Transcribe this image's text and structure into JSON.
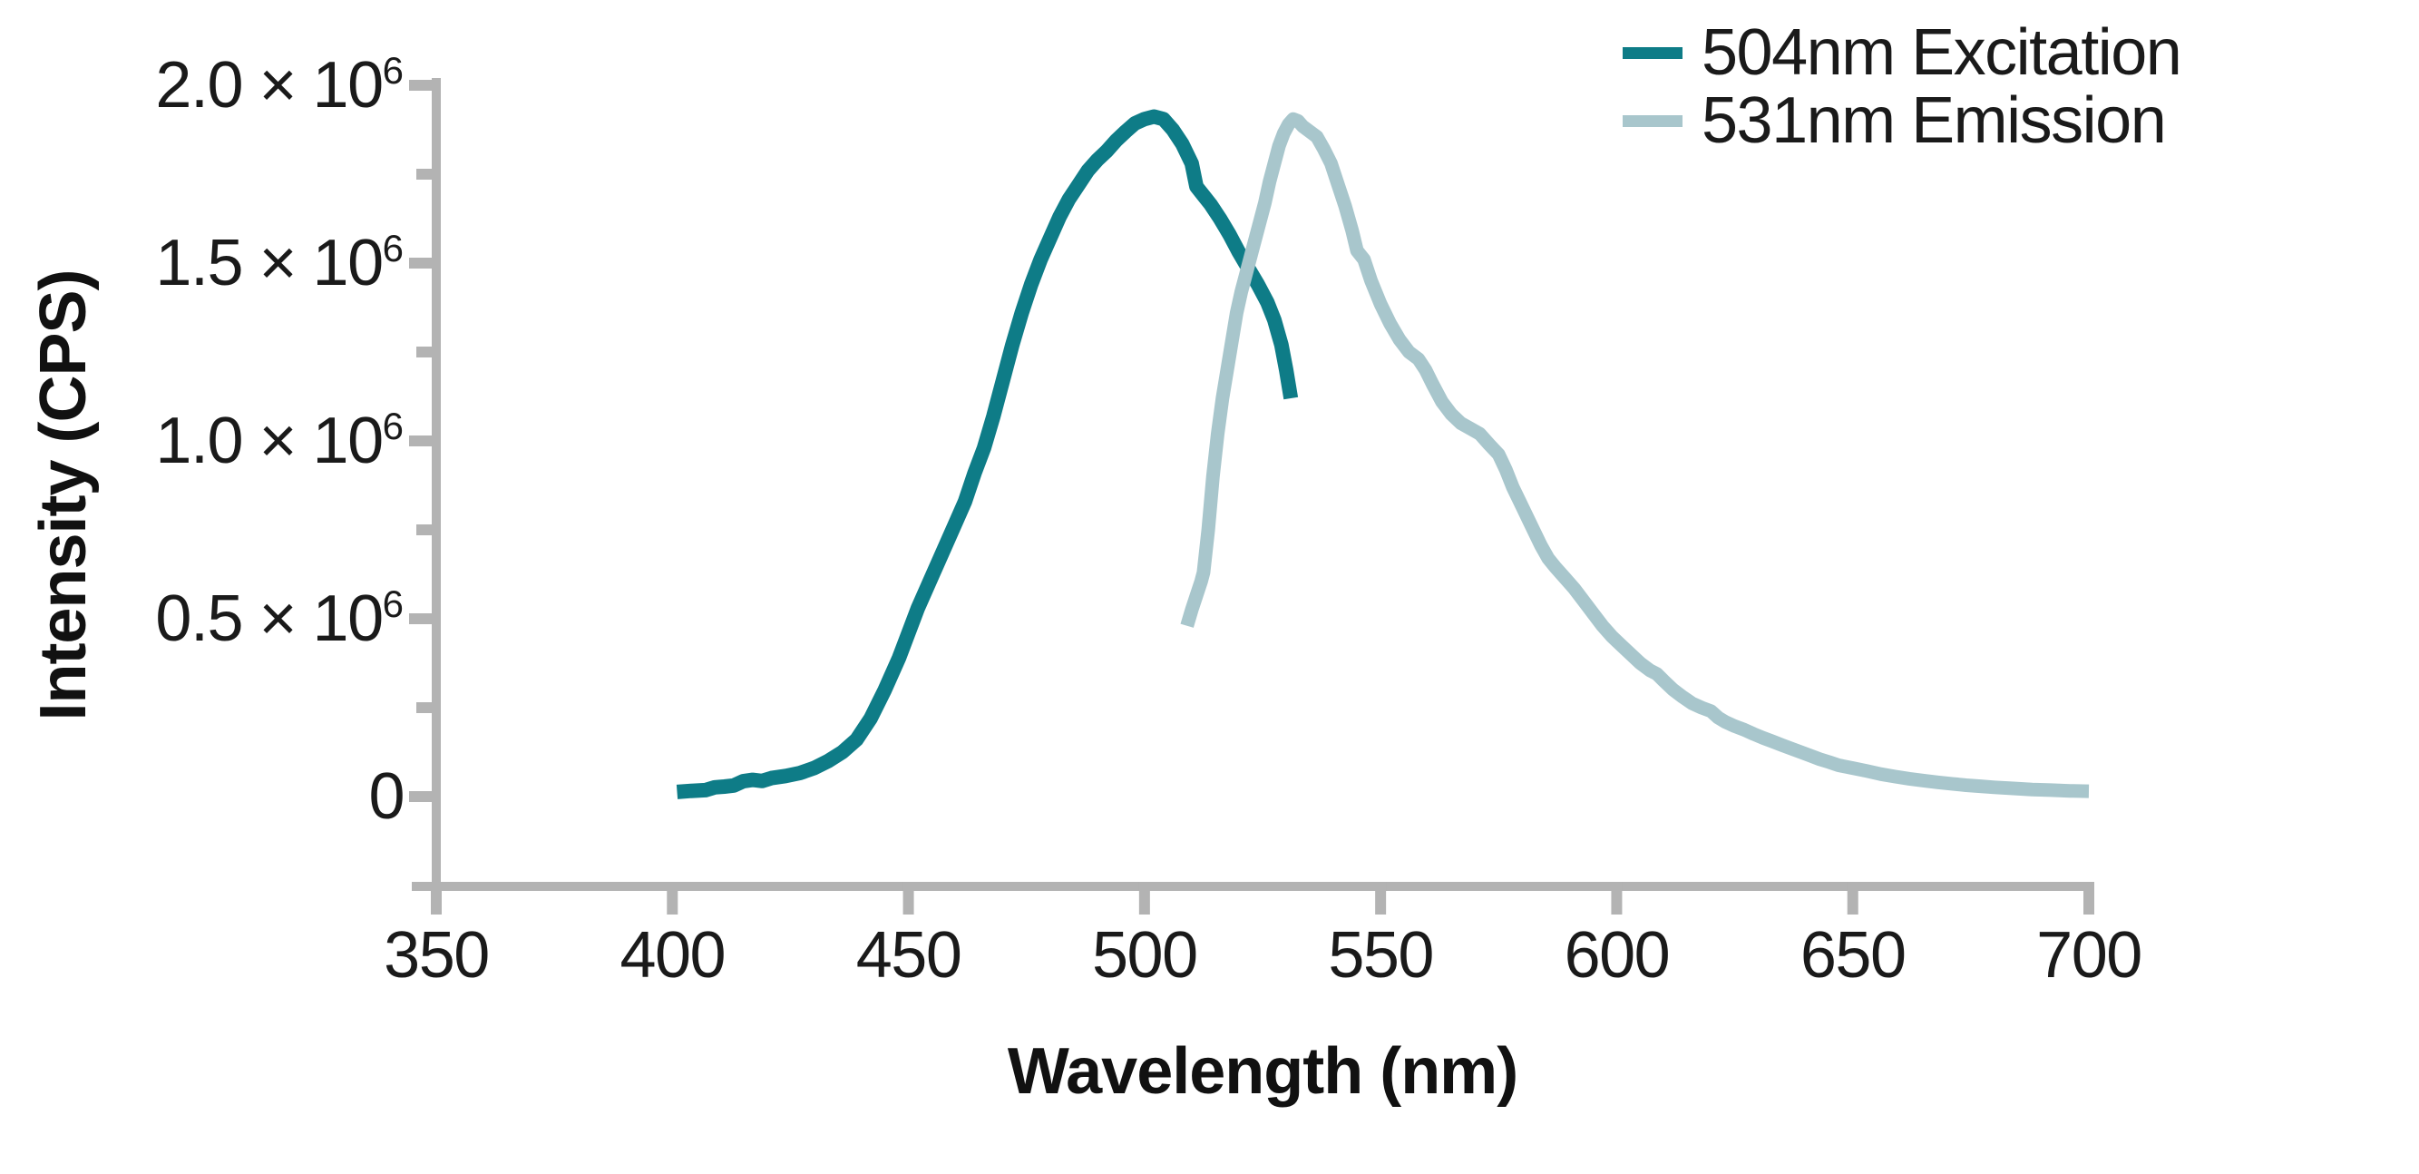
{
  "chart_data": {
    "type": "line",
    "title": "",
    "xlabel": "Wavelength (nm)",
    "ylabel": "Intensity (CPS)",
    "xlim": [
      350,
      700
    ],
    "ylim_cps": [
      0,
      2000000
    ],
    "y_unit_note": "intensity values below are in millions of CPS (×10⁶)",
    "grid": false,
    "legend_position": "top-right",
    "axis_color": "#b3b3b3",
    "text_color": "#1a1a1a",
    "x_ticks": [
      {
        "label": "350",
        "value": 350
      },
      {
        "label": "400",
        "value": 400
      },
      {
        "label": "450",
        "value": 450
      },
      {
        "label": "500",
        "value": 500
      },
      {
        "label": "550",
        "value": 550
      },
      {
        "label": "600",
        "value": 600
      },
      {
        "label": "650",
        "value": 650
      },
      {
        "label": "700",
        "value": 700
      }
    ],
    "y_ticks": [
      {
        "main": "2.0 × 10",
        "sup": "6",
        "value": 2.0
      },
      {
        "main": "1.5 × 10",
        "sup": "6",
        "value": 1.5
      },
      {
        "main": "1.0 × 10",
        "sup": "6",
        "value": 1.0
      },
      {
        "main": "0.5 × 10",
        "sup": "6",
        "value": 0.5
      },
      {
        "main": "0",
        "sup": "",
        "value": 0
      }
    ],
    "y_minor_ticks": [
      1.75,
      1.25,
      0.75,
      0.25
    ],
    "series": [
      {
        "name": "504nm Excitation",
        "color": "#0e7c87",
        "peak_nm": 504,
        "peak_intensity_e6": 1.91,
        "points": [
          [
            401,
            0.013
          ],
          [
            404,
            0.016
          ],
          [
            407,
            0.018
          ],
          [
            409,
            0.026
          ],
          [
            411,
            0.028
          ],
          [
            413,
            0.031
          ],
          [
            415,
            0.043
          ],
          [
            417,
            0.047
          ],
          [
            419,
            0.044
          ],
          [
            421,
            0.052
          ],
          [
            424,
            0.058
          ],
          [
            427,
            0.066
          ],
          [
            430,
            0.08
          ],
          [
            433,
            0.1
          ],
          [
            436,
            0.125
          ],
          [
            439,
            0.16
          ],
          [
            442,
            0.22
          ],
          [
            445,
            0.3
          ],
          [
            448,
            0.39
          ],
          [
            450,
            0.46
          ],
          [
            452,
            0.53
          ],
          [
            454,
            0.59
          ],
          [
            456,
            0.65
          ],
          [
            458,
            0.71
          ],
          [
            460,
            0.77
          ],
          [
            462,
            0.83
          ],
          [
            464,
            0.91
          ],
          [
            466,
            0.98
          ],
          [
            468,
            1.07
          ],
          [
            470,
            1.17
          ],
          [
            472,
            1.27
          ],
          [
            474,
            1.36
          ],
          [
            476,
            1.44
          ],
          [
            478,
            1.51
          ],
          [
            480,
            1.57
          ],
          [
            482,
            1.63
          ],
          [
            484,
            1.68
          ],
          [
            486,
            1.72
          ],
          [
            488,
            1.76
          ],
          [
            490,
            1.79
          ],
          [
            492,
            1.815
          ],
          [
            494,
            1.845
          ],
          [
            496,
            1.87
          ],
          [
            498,
            1.893
          ],
          [
            500,
            1.905
          ],
          [
            502,
            1.912
          ],
          [
            504,
            1.905
          ],
          [
            506,
            1.875
          ],
          [
            508,
            1.835
          ],
          [
            510,
            1.78
          ],
          [
            511,
            1.715
          ],
          [
            512.5,
            1.69
          ],
          [
            514,
            1.665
          ],
          [
            516,
            1.625
          ],
          [
            518,
            1.58
          ],
          [
            520,
            1.53
          ],
          [
            522,
            1.485
          ],
          [
            524,
            1.44
          ],
          [
            526,
            1.39
          ],
          [
            527.5,
            1.34
          ],
          [
            529,
            1.27
          ],
          [
            530,
            1.2
          ],
          [
            531,
            1.12
          ]
        ]
      },
      {
        "name": "531nm Emission",
        "color": "#a8c6cc",
        "peak_nm": 531,
        "peak_intensity_e6": 1.9,
        "points": [
          [
            509,
            0.48
          ],
          [
            510,
            0.525
          ],
          [
            511,
            0.565
          ],
          [
            512,
            0.605
          ],
          [
            512.5,
            0.63
          ],
          [
            513.5,
            0.75
          ],
          [
            514.5,
            0.9
          ],
          [
            515.5,
            1.02
          ],
          [
            516.5,
            1.12
          ],
          [
            517.5,
            1.2
          ],
          [
            518.5,
            1.28
          ],
          [
            519.5,
            1.36
          ],
          [
            520.5,
            1.42
          ],
          [
            521.5,
            1.47
          ],
          [
            522.5,
            1.52
          ],
          [
            523.5,
            1.57
          ],
          [
            524.5,
            1.62
          ],
          [
            525.5,
            1.67
          ],
          [
            526.5,
            1.73
          ],
          [
            527.5,
            1.78
          ],
          [
            528.5,
            1.83
          ],
          [
            529.5,
            1.865
          ],
          [
            530.5,
            1.89
          ],
          [
            531.5,
            1.905
          ],
          [
            532.5,
            1.9
          ],
          [
            533.5,
            1.885
          ],
          [
            535,
            1.87
          ],
          [
            536.5,
            1.855
          ],
          [
            538,
            1.82
          ],
          [
            539.5,
            1.78
          ],
          [
            541,
            1.72
          ],
          [
            542.5,
            1.66
          ],
          [
            544,
            1.59
          ],
          [
            545,
            1.535
          ],
          [
            546.5,
            1.51
          ],
          [
            548,
            1.45
          ],
          [
            550,
            1.385
          ],
          [
            552,
            1.33
          ],
          [
            554,
            1.285
          ],
          [
            556,
            1.25
          ],
          [
            558,
            1.23
          ],
          [
            559.5,
            1.2
          ],
          [
            561,
            1.16
          ],
          [
            563,
            1.11
          ],
          [
            565,
            1.075
          ],
          [
            567,
            1.05
          ],
          [
            569,
            1.035
          ],
          [
            571,
            1.02
          ],
          [
            573,
            0.99
          ],
          [
            575,
            0.962
          ],
          [
            576.5,
            0.92
          ],
          [
            578,
            0.87
          ],
          [
            580,
            0.815
          ],
          [
            582,
            0.76
          ],
          [
            584,
            0.705
          ],
          [
            585.5,
            0.67
          ],
          [
            587,
            0.645
          ],
          [
            589,
            0.615
          ],
          [
            591,
            0.585
          ],
          [
            593,
            0.55
          ],
          [
            595,
            0.515
          ],
          [
            597,
            0.48
          ],
          [
            599,
            0.45
          ],
          [
            601,
            0.425
          ],
          [
            603,
            0.4
          ],
          [
            605,
            0.375
          ],
          [
            607,
            0.355
          ],
          [
            608.5,
            0.345
          ],
          [
            610,
            0.325
          ],
          [
            612,
            0.3
          ],
          [
            614,
            0.28
          ],
          [
            616,
            0.262
          ],
          [
            618,
            0.25
          ],
          [
            620,
            0.24
          ],
          [
            621.5,
            0.222
          ],
          [
            623,
            0.21
          ],
          [
            625,
            0.198
          ],
          [
            627,
            0.188
          ],
          [
            629,
            0.176
          ],
          [
            631,
            0.165
          ],
          [
            633,
            0.155
          ],
          [
            635,
            0.145
          ],
          [
            637,
            0.135
          ],
          [
            639,
            0.125
          ],
          [
            641,
            0.115
          ],
          [
            643,
            0.105
          ],
          [
            645,
            0.097
          ],
          [
            647,
            0.088
          ],
          [
            650,
            0.08
          ],
          [
            653,
            0.072
          ],
          [
            656,
            0.063
          ],
          [
            659,
            0.056
          ],
          [
            662,
            0.05
          ],
          [
            665,
            0.045
          ],
          [
            668,
            0.04
          ],
          [
            671,
            0.036
          ],
          [
            674,
            0.032
          ],
          [
            677,
            0.029
          ],
          [
            680,
            0.026
          ],
          [
            684,
            0.023
          ],
          [
            688,
            0.02
          ],
          [
            692,
            0.018
          ],
          [
            696,
            0.016
          ],
          [
            700,
            0.015
          ]
        ]
      }
    ]
  }
}
